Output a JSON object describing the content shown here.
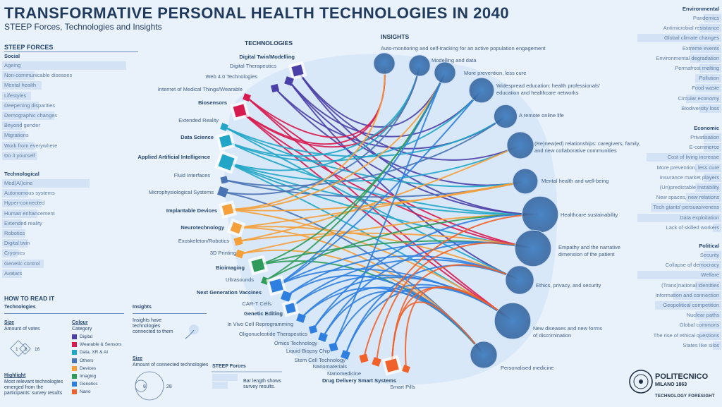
{
  "header": {
    "title": "TRANSFORMATIVE PERSONAL HEALTH TECHNOLOGIES IN 2040",
    "subtitle": "STEEP Forces, Technologies and Insights"
  },
  "steep": {
    "title": "STEEP FORCES",
    "social": {
      "title": "Social",
      "items": [
        {
          "label": "Ageing",
          "value": 0.95
        },
        {
          "label": "Non-communicable diseases",
          "value": 0.25
        },
        {
          "label": "Mental health",
          "value": 0.3
        },
        {
          "label": "Lifestyles",
          "value": 0.22
        },
        {
          "label": "Deepening disparities",
          "value": 0.28
        },
        {
          "label": "Demographic changes",
          "value": 0.4
        },
        {
          "label": "Beyond gender",
          "value": 0.15
        },
        {
          "label": "Migrations",
          "value": 0.18
        },
        {
          "label": "Work from everywhere",
          "value": 0.25
        },
        {
          "label": "Do it yourself",
          "value": 0.27
        }
      ]
    },
    "technological": {
      "title": "Technological",
      "items": [
        {
          "label": "Med(AI)cine",
          "value": 0.67
        },
        {
          "label": "Autonomous systems",
          "value": 0.2
        },
        {
          "label": "Hyper-connected",
          "value": 0.3
        },
        {
          "label": "Human enhancement",
          "value": 0.27
        },
        {
          "label": "Extended reality",
          "value": 0.15
        },
        {
          "label": "Robotics",
          "value": 0.18
        },
        {
          "label": "Digital twin",
          "value": 0.2
        },
        {
          "label": "Cryonics",
          "value": 0.12
        },
        {
          "label": "Genetic control",
          "value": 0.32
        },
        {
          "label": "Avatars",
          "value": 0.15
        }
      ]
    },
    "environmental": {
      "title": "Environmental",
      "items": [
        {
          "label": "Pandemics",
          "value": 0.2
        },
        {
          "label": "Antimicrobial resistance",
          "value": 0.25
        },
        {
          "label": "Global climate changes",
          "value": 0.95
        },
        {
          "label": "Extreme events",
          "value": 0.35
        },
        {
          "label": "Environmental degradation",
          "value": 0.35
        },
        {
          "label": "Permafrost melting",
          "value": 0.25
        },
        {
          "label": "Pollution",
          "value": 0.3
        },
        {
          "label": "Food waste",
          "value": 0.3
        },
        {
          "label": "Circular economy",
          "value": 0.4
        },
        {
          "label": "Biodiversity loss",
          "value": 0.25
        }
      ]
    },
    "economic": {
      "title": "Economic",
      "items": [
        {
          "label": "Privatisation",
          "value": 0.2
        },
        {
          "label": "E-commerce",
          "value": 0.2
        },
        {
          "label": "Cost of living increase",
          "value": 0.85
        },
        {
          "label": "More prevention, less cure",
          "value": 0.3
        },
        {
          "label": "Insurance market players",
          "value": 0.2
        },
        {
          "label": "(Un)predictable instability",
          "value": 0.3
        },
        {
          "label": "New spaces, new relations",
          "value": 0.4
        },
        {
          "label": "Tech giants' persuasiveness",
          "value": 0.8
        },
        {
          "label": "Data exploitation",
          "value": 0.95
        },
        {
          "label": "Lack of skilled workers",
          "value": 0.1
        }
      ]
    },
    "political": {
      "title": "Political",
      "items": [
        {
          "label": "Security",
          "value": 0.2
        },
        {
          "label": "Collapse of democracy",
          "value": 0.25
        },
        {
          "label": "Welfare",
          "value": 0.95
        },
        {
          "label": "(Trans)national identities",
          "value": 0.3
        },
        {
          "label": "Information and connection",
          "value": 0.55
        },
        {
          "label": "Geopolitical competition",
          "value": 0.75
        },
        {
          "label": "Nuclear paths",
          "value": 0.3
        },
        {
          "label": "Global commons",
          "value": 0.25
        },
        {
          "label": "The rise of ethical questions",
          "value": 0.25
        },
        {
          "label": "States like silos",
          "value": 0.1
        }
      ]
    }
  },
  "technologies": {
    "title": "TECHNOLOGIES",
    "items": [
      {
        "label": "Digital Twin/Modelling",
        "category": "Digital",
        "votes": 11,
        "highlight": true
      },
      {
        "label": "Digital Therapeutics",
        "category": "Digital",
        "votes": 5,
        "highlight": false
      },
      {
        "label": "Web 4.0 Technologies",
        "category": "Digital",
        "votes": 4,
        "highlight": false
      },
      {
        "label": "Internet of Medical Things/Wearable",
        "category": "Wearable & Sensors",
        "votes": 3,
        "highlight": false
      },
      {
        "label": "Biosensors",
        "category": "Wearable & Sensors",
        "votes": 14,
        "highlight": true
      },
      {
        "label": "Extended Reality",
        "category": "Data, XR & AI",
        "votes": 3,
        "highlight": false
      },
      {
        "label": "Data Science",
        "category": "Data, XR & AI",
        "votes": 13,
        "highlight": true
      },
      {
        "label": "Applied Artificial Intelligence",
        "category": "Data, XR & AI",
        "votes": 22,
        "highlight": true
      },
      {
        "label": "Fluid Interfaces",
        "category": "Others",
        "votes": 3,
        "highlight": false
      },
      {
        "label": "Microphysiological Systems",
        "category": "Others",
        "votes": 8,
        "highlight": false
      },
      {
        "label": "Implantable Devices",
        "category": "Devices",
        "votes": 10,
        "highlight": true
      },
      {
        "label": "Neurotechnology",
        "category": "Devices",
        "votes": 9,
        "highlight": true
      },
      {
        "label": "Exoskeleton/Robotics",
        "category": "Devices",
        "votes": 5,
        "highlight": false
      },
      {
        "label": "3D Printing",
        "category": "Devices",
        "votes": 4,
        "highlight": false
      },
      {
        "label": "Bioimaging",
        "category": "Imaging",
        "votes": 15,
        "highlight": true
      },
      {
        "label": "Ultrasounds",
        "category": "Imaging",
        "votes": 3,
        "highlight": false
      },
      {
        "label": "Next Generation Vaccines",
        "category": "Genetics",
        "votes": 16,
        "highlight": true
      },
      {
        "label": "CAR-T Cells",
        "category": "Genetics",
        "votes": 8,
        "highlight": false
      },
      {
        "label": "Genetic Editing",
        "category": "Genetics",
        "votes": 8,
        "highlight": true
      },
      {
        "label": "In Vivo Cell Reprogramming",
        "category": "Genetics",
        "votes": 5,
        "highlight": false
      },
      {
        "label": "Oligonucleotide Therapeutics",
        "category": "Genetics",
        "votes": 4,
        "highlight": false
      },
      {
        "label": "Omics Technology",
        "category": "Genetics",
        "votes": 5,
        "highlight": false
      },
      {
        "label": "Liquid Biopsy Chip",
        "category": "Genetics",
        "votes": 5,
        "highlight": false
      },
      {
        "label": "Stem Cell Technology",
        "category": "Genetics",
        "votes": 5,
        "highlight": false
      },
      {
        "label": "Nanomaterials",
        "category": "Nano",
        "votes": 5,
        "highlight": false
      },
      {
        "label": "Nanomedicine",
        "category": "Nano",
        "votes": 5,
        "highlight": false
      },
      {
        "label": "Drug Delivery Smart Systems",
        "category": "Nano",
        "votes": 16,
        "highlight": true
      },
      {
        "label": "Smart Pills",
        "category": "Nano",
        "votes": 3,
        "highlight": false
      }
    ]
  },
  "insights": {
    "title": "INSIGHTS",
    "items": [
      {
        "label": "Auto-monitoring and self-tracking for an active population engagement",
        "connections": 8
      },
      {
        "label": "Modelling and data",
        "connections": 8
      },
      {
        "label": "More prevention, less cure",
        "connections": 8
      },
      {
        "label": "Widespread education: health professionals' education and healthcare networks",
        "connections": 12
      },
      {
        "label": "A remote online life",
        "connections": 10
      },
      {
        "label": "(Re)new(ed) relationships: caregivers, family, and new collaborative communities",
        "connections": 14
      },
      {
        "label": "Mental health and well-being",
        "connections": 12
      },
      {
        "label": "Healthcare sustainability",
        "connections": 28
      },
      {
        "label": "Empathy and the narrative dimension of the patient",
        "connections": 28
      },
      {
        "label": "Ethics, privacy, and security",
        "connections": 16
      },
      {
        "label": "New diseases and new forms of discrimination",
        "connections": 28
      },
      {
        "label": "Personalised medicine",
        "connections": 14
      }
    ]
  },
  "categories": [
    {
      "name": "Digital",
      "color": "#4b3fa8"
    },
    {
      "name": "Wearable & Sensors",
      "color": "#d81b4f"
    },
    {
      "name": "Data, XR & AI",
      "color": "#22a6c8"
    },
    {
      "name": "Others",
      "color": "#4a74b4"
    },
    {
      "name": "Devices",
      "color": "#f5a03a"
    },
    {
      "name": "Imaging",
      "color": "#2f9b5a"
    },
    {
      "name": "Genetics",
      "color": "#2f7fe0"
    },
    {
      "name": "Nano",
      "color": "#f0622a"
    }
  ],
  "howto": {
    "title": "HOW TO READ IT",
    "technologies_title": "Technologies",
    "size_title": "Size",
    "size_desc": "Amount of votes",
    "size_values": [
      "1",
      "8",
      "16"
    ],
    "highlight_title": "Highlight",
    "highlight_desc": "Most relevant technologies emerged from the participants' survey results",
    "colour_title": "Colour",
    "colour_desc": "Category",
    "insights_title": "Insights",
    "insights_desc": "Insights have technologies connected to them",
    "insights_size_title": "Size",
    "insights_size_desc": "Amount of connected technologies",
    "insights_size_values": [
      "8",
      "28"
    ],
    "steep_title": "STEEP Forces",
    "steep_desc": "Bar length shows survey results."
  },
  "logo": {
    "name": "POLITECNICO",
    "sub": "MILANO 1863",
    "tag": "TECHNOLOGY FORESIGHT"
  }
}
